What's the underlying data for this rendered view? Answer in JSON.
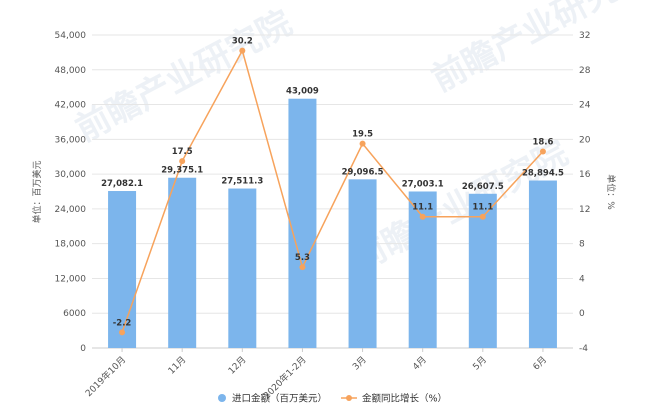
{
  "chart_data": {
    "type": "bar",
    "categories": [
      "2019年10月",
      "11月",
      "12月",
      "2020年1-2月",
      "3月",
      "4月",
      "5月",
      "6月"
    ],
    "series": [
      {
        "name": "进口金额（百万美元）",
        "type": "bar",
        "axis": "left",
        "values": [
          27082.1,
          29375.1,
          27511.3,
          43009,
          29096.5,
          27003.1,
          26607.5,
          28894.5
        ],
        "labels": [
          "27,082.1",
          "29,375.1",
          "27,511.3",
          "43,009",
          "29,096.5",
          "27,003.1",
          "26,607.5",
          "28,894.5"
        ]
      },
      {
        "name": "金额同比增长（%）",
        "type": "line",
        "axis": "right",
        "values": [
          -2.2,
          17.5,
          30.2,
          5.3,
          19.5,
          11.1,
          11.1,
          18.6
        ],
        "labels": [
          "-2.2",
          "17.5",
          "30.2",
          "5.3",
          "19.5",
          "11.1",
          "11.1",
          "18.6"
        ]
      }
    ],
    "ylabel": "单位：百万美元",
    "y2label": "单位：%",
    "ylim": [
      0,
      54000
    ],
    "y2lim": [
      -4,
      32
    ],
    "yticks": [
      "0",
      "6000",
      "12,000",
      "18,000",
      "24,000",
      "30,000",
      "36,000",
      "42,000",
      "48,000",
      "54,000"
    ],
    "y2ticks": [
      "-4",
      "0",
      "4",
      "8",
      "12",
      "16",
      "20",
      "24",
      "28",
      "32"
    ],
    "grid": true,
    "legend_position": "bottom",
    "colors": {
      "bar": "#7cb5ec",
      "line": "#f7a35c"
    }
  },
  "watermarks": [
    "前瞻产业研究院",
    "前瞻产业研究院",
    "前瞻产业研究院"
  ]
}
